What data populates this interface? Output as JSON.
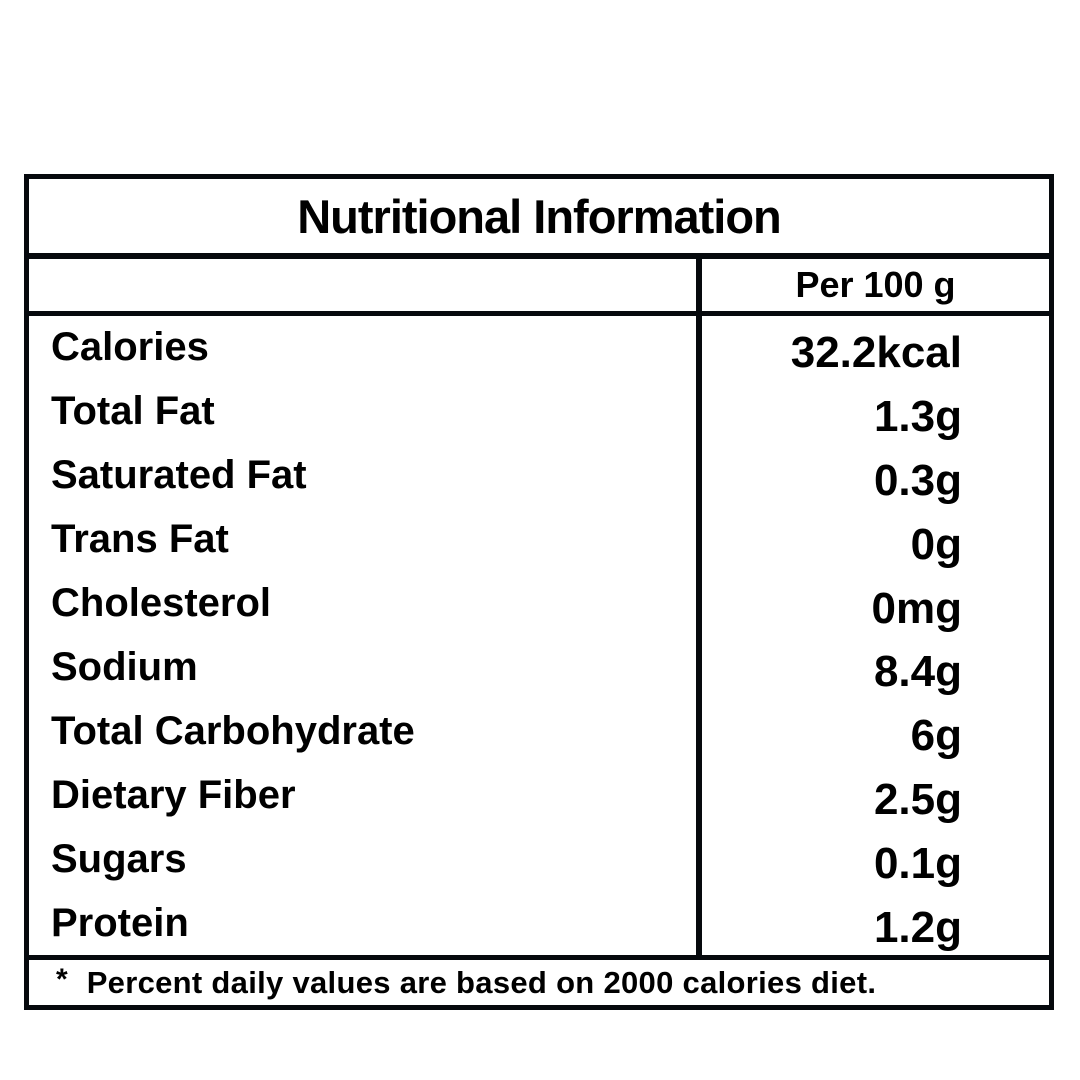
{
  "page": {
    "background_color": "#ffffff",
    "text_color": "#000000",
    "border_color": "#06090d"
  },
  "table": {
    "title": "Nutritional Information",
    "column_header": "Per 100 g",
    "rows": [
      {
        "label": "Calories",
        "value": "32.2kcal"
      },
      {
        "label": "Total Fat",
        "value": "1.3g"
      },
      {
        "label": "Saturated Fat",
        "value": "0.3g"
      },
      {
        "label": "Trans Fat",
        "value": "0g"
      },
      {
        "label": "Cholesterol",
        "value": "0mg"
      },
      {
        "label": "Sodium",
        "value": "8.4g"
      },
      {
        "label": "Total Carbohydrate",
        "value": "6g"
      },
      {
        "label": "Dietary Fiber",
        "value": "2.5g"
      },
      {
        "label": "Sugars",
        "value": "0.1g"
      },
      {
        "label": "Protein",
        "value": "1.2g"
      }
    ],
    "footnote": {
      "marker": "*",
      "text": "Percent daily values are based on 2000 calories diet."
    }
  }
}
